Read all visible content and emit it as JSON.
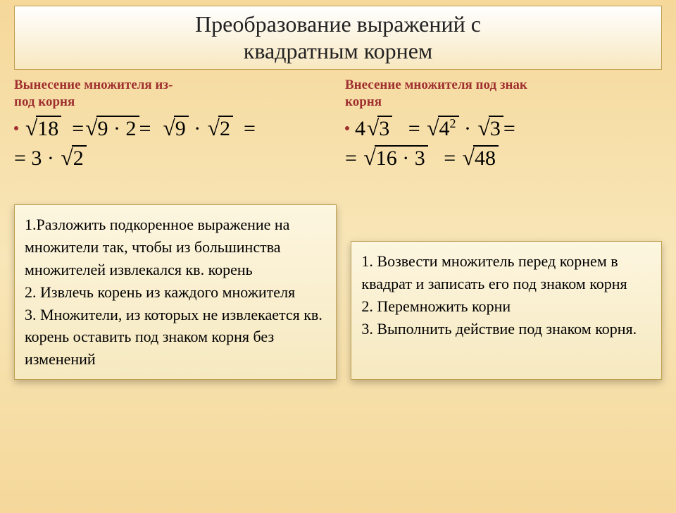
{
  "title_line1": "Преобразование выражений с",
  "title_line2": "квадратным корнем",
  "left": {
    "heading_l1": "Вынесение множителя из-",
    "heading_l2": "под корня",
    "math1_a": "18",
    "math1_b": "9 · 2",
    "math1_c": "9",
    "math1_d": "2",
    "math2": "= 3 · ",
    "math2_r": "2",
    "note": "1.Разложить подкоренное выражение на множители так, чтобы  из большинства множителей извлекался кв. корень\n2. Извлечь корень из каждого множителя\n3. Множители, из которых не извлекается кв. корень оставить под знаком корня без изменений"
  },
  "right": {
    "heading_l1": "Внесение множителя под знак",
    "heading_l2": "корня",
    "coef": "4",
    "math1_a": "3",
    "math1_b": "4",
    "math1_b_exp": "2",
    "math1_c": "3",
    "math2_a": "16 · 3",
    "math2_b": "48",
    "note": "1. Возвести множитель перед корнем в квадрат и записать его под знаком корня\n2. Перемножить корни\n3. Выполнить действие под знаком корня."
  },
  "colors": {
    "heading": "#a03030",
    "title_text": "#222222",
    "box_border": "#c0a050",
    "bg_top": "#f5d89a",
    "note_bg_top": "#fdf6e0",
    "note_bg_bottom": "#f6e9c0"
  }
}
